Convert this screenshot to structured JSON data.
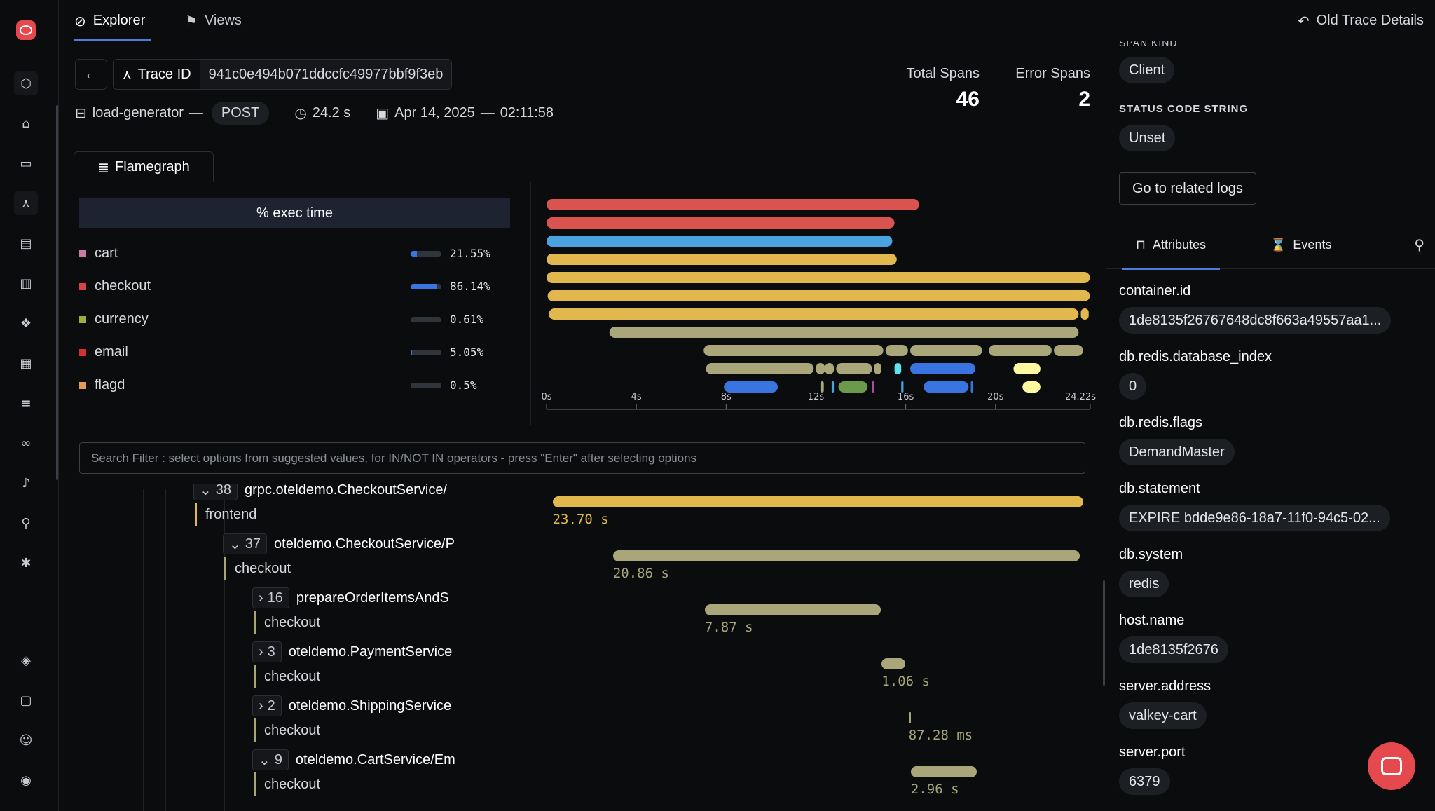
{
  "nav": {
    "top_icons": [
      "cube-icon",
      "home-icon",
      "inbox-icon",
      "traces-icon",
      "logs-icon",
      "chart-icon",
      "apps-icon",
      "grid-icon",
      "list-icon",
      "binoculars-icon",
      "bell-icon",
      "pipeline-icon",
      "bug-icon"
    ],
    "bottom_icons": [
      "layers-icon",
      "chat-icon",
      "add-user-icon",
      "user-circle-icon"
    ]
  },
  "topbar": {
    "tabs": [
      {
        "label": "Explorer"
      },
      {
        "label": "Views"
      }
    ],
    "old_trace_label": "Old Trace Details"
  },
  "trace": {
    "id_label": "Trace ID",
    "id_value": "941c0e494b071ddccfc49977bbf9f3eb",
    "service": "load-generator",
    "separator": "—",
    "method": "POST",
    "duration": "24.2 s",
    "date": "Apr 14, 2025",
    "time": "02:11:58",
    "total_spans_label": "Total Spans",
    "total_spans": "46",
    "error_spans_label": "Error Spans",
    "error_spans": "2"
  },
  "flamegraph_tab": "Flamegraph",
  "exec": {
    "header": "% exec time",
    "rows": [
      {
        "name": "cart",
        "pct": "21.55%",
        "fill": 0.2155,
        "color": "#c87ca2"
      },
      {
        "name": "checkout",
        "pct": "86.14%",
        "fill": 0.8614,
        "color": "#d64545"
      },
      {
        "name": "currency",
        "pct": "0.61%",
        "fill": 0.0061,
        "color": "#9ab03a"
      },
      {
        "name": "email",
        "pct": "5.05%",
        "fill": 0.0505,
        "color": "#d62f2f"
      },
      {
        "name": "flagd",
        "pct": "0.5%",
        "fill": 0.005,
        "color": "#e39a52"
      }
    ]
  },
  "flame_axis": {
    "ticks": [
      "0s",
      "4s",
      "8s",
      "12s",
      "16s",
      "20s",
      "24.22s"
    ],
    "max": 24.22
  },
  "search": {
    "placeholder": "Search Filter : select options from suggested values, for IN/NOT IN operators - press \"Enter\" after selecting options"
  },
  "tree": [
    {
      "count": "38",
      "name": "grpc.oteldemo.CheckoutService/",
      "service": "frontend",
      "expanded": true,
      "duration": "23.70 s",
      "color": "#e2b84e",
      "start": 0.3,
      "span": 23.7
    },
    {
      "count": "37",
      "name": "oteldemo.CheckoutService/P",
      "service": "checkout",
      "expanded": true,
      "duration": "20.86 s",
      "color": "#a9a77a",
      "start": 3.0,
      "span": 20.86
    },
    {
      "count": "16",
      "name": "prepareOrderItemsAndS",
      "service": "checkout",
      "expanded": false,
      "duration": "7.87 s",
      "color": "#a9a77a",
      "start": 7.1,
      "span": 7.87
    },
    {
      "count": "3",
      "name": "oteldemo.PaymentService",
      "service": "checkout",
      "expanded": false,
      "duration": "1.06 s",
      "color": "#a9a77a",
      "start": 15.0,
      "span": 1.06
    },
    {
      "count": "2",
      "name": "oteldemo.ShippingService",
      "service": "checkout",
      "expanded": false,
      "duration": "87.28 ms",
      "color": "#a9a77a",
      "start": 16.2,
      "span": 0.087
    },
    {
      "count": "9",
      "name": "oteldemo.CartService/Em",
      "service": "checkout",
      "expanded": true,
      "duration": "2.96 s",
      "color": "#a9a77a",
      "start": 16.3,
      "span": 2.96
    }
  ],
  "right_panel": {
    "cut_caption": "SPAN KIND",
    "span_kind": "Client",
    "status_code_caption": "STATUS CODE STRING",
    "status_code": "Unset",
    "related_logs_button": "Go to related logs",
    "tabs": [
      {
        "label": "Attributes"
      },
      {
        "label": "Events"
      }
    ],
    "attributes": [
      {
        "key": "container.id",
        "value": "1de8135f26767648dc8f663a49557aa1..."
      },
      {
        "key": "db.redis.database_index",
        "value": "0"
      },
      {
        "key": "db.redis.flags",
        "value": "DemandMaster"
      },
      {
        "key": "db.statement",
        "value": "EXPIRE bdde9e86-18a7-11f0-94c5-02..."
      },
      {
        "key": "db.system",
        "value": "redis"
      },
      {
        "key": "host.name",
        "value": "1de8135f2676"
      },
      {
        "key": "server.address",
        "value": "valkey-cart"
      },
      {
        "key": "server.port",
        "value": "6379"
      }
    ]
  },
  "colors": {
    "accent": "#4e7dd9",
    "flame_red": "#d9534f",
    "flame_blue": "#4aa3df",
    "flame_yellow": "#e2b84e",
    "flame_olive": "#a9a77a"
  }
}
